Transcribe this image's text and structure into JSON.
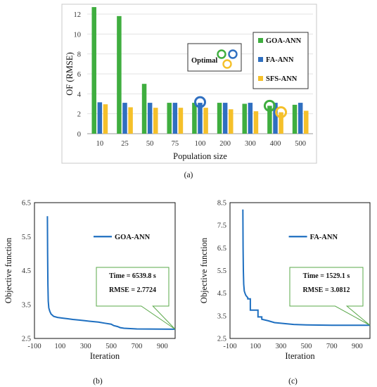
{
  "chart_data": [
    {
      "type": "bar",
      "ylabel": "OF (RMSE)",
      "xlabel": "Population size",
      "categories": [
        "10",
        "25",
        "50",
        "75",
        "100",
        "200",
        "300",
        "400",
        "500"
      ],
      "ylim": [
        0,
        12
      ],
      "yticks": [
        0,
        2,
        4,
        6,
        8,
        10,
        12
      ],
      "series": [
        {
          "name": "GOA-ANN",
          "color": "#3fae3f",
          "values": [
            12.7,
            11.8,
            5.0,
            3.1,
            3.1,
            3.1,
            3.0,
            2.8,
            2.9
          ]
        },
        {
          "name": "FA-ANN",
          "color": "#2f6fc0",
          "values": [
            3.15,
            3.1,
            3.1,
            3.1,
            3.1,
            3.1,
            3.1,
            3.1,
            3.1
          ]
        },
        {
          "name": "SFS-ANN",
          "color": "#f5c02a",
          "values": [
            2.95,
            2.65,
            2.6,
            2.6,
            2.6,
            2.45,
            2.25,
            2.15,
            2.3
          ]
        }
      ],
      "annotation": "Optimal",
      "legend_position": "right",
      "caption": "(a)"
    },
    {
      "type": "line",
      "ylabel": "Objective function",
      "xlabel": "Iteration",
      "xlim": [
        -100,
        1000
      ],
      "ylim": [
        2.5,
        6.5
      ],
      "xticks": [
        -100,
        100,
        300,
        500,
        700,
        900
      ],
      "yticks": [
        2.5,
        3.5,
        4.5,
        5.5,
        6.5
      ],
      "series": [
        {
          "name": "GOA-ANN",
          "color": "#1e6fc0",
          "x": [
            1,
            3,
            5,
            8,
            12,
            20,
            30,
            50,
            80,
            120,
            160,
            200,
            250,
            300,
            350,
            400,
            450,
            500,
            520,
            550,
            570,
            600,
            650,
            700,
            800,
            900,
            1000
          ],
          "y": [
            6.1,
            5.0,
            4.1,
            3.6,
            3.4,
            3.3,
            3.22,
            3.15,
            3.12,
            3.1,
            3.08,
            3.06,
            3.04,
            3.02,
            3.0,
            2.98,
            2.95,
            2.92,
            2.88,
            2.85,
            2.82,
            2.8,
            2.79,
            2.78,
            2.777,
            2.775,
            2.7724
          ]
        }
      ],
      "annotation_lines": [
        "Time = 6539.8 s",
        "RMSE = 2.7724"
      ],
      "caption": "(b)"
    },
    {
      "type": "line",
      "ylabel": "Objective function",
      "xlabel": "Iteration",
      "xlim": [
        -100,
        1000
      ],
      "ylim": [
        2.5,
        8.5
      ],
      "xticks": [
        -100,
        100,
        300,
        500,
        700,
        900
      ],
      "yticks": [
        2.5,
        3.5,
        4.5,
        5.5,
        6.5,
        7.5,
        8.5
      ],
      "series": [
        {
          "name": "FA-ANN",
          "color": "#1e6fc0",
          "x": [
            1,
            3,
            5,
            8,
            12,
            18,
            25,
            40,
            40,
            60,
            60,
            90,
            90,
            120,
            120,
            150,
            150,
            200,
            250,
            300,
            400,
            500,
            600,
            700,
            800,
            1000
          ],
          "y": [
            8.2,
            6.5,
            5.5,
            4.9,
            4.6,
            4.5,
            4.4,
            4.3,
            4.25,
            4.25,
            3.75,
            3.75,
            3.75,
            3.75,
            3.45,
            3.45,
            3.35,
            3.28,
            3.2,
            3.17,
            3.12,
            3.1,
            3.09,
            3.085,
            3.083,
            3.0812
          ]
        }
      ],
      "annotation_lines": [
        "Time = 1529.1 s",
        "RMSE = 3.0812"
      ],
      "caption": "(c)"
    }
  ]
}
